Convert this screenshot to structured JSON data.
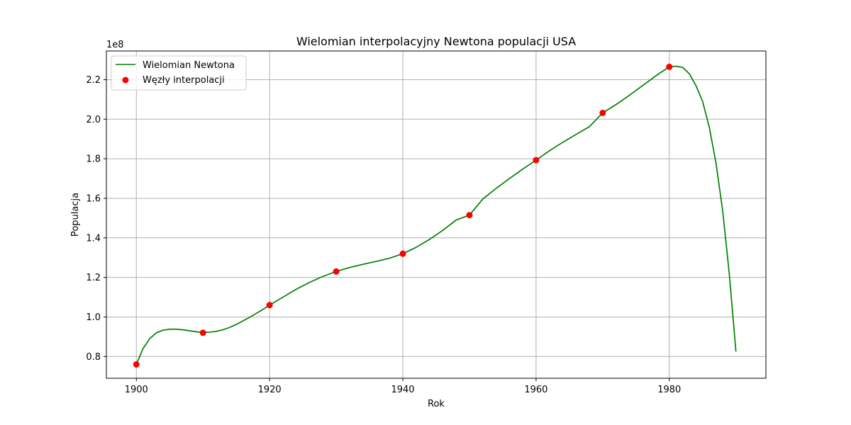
{
  "chart_data": {
    "type": "line",
    "title": "Wielomian interpolacyjny Newtona populacji USA",
    "xlabel": "Rok",
    "ylabel": "Populacja",
    "offset_label": "1e8",
    "xlim": [
      1895.5,
      1994.5
    ],
    "ylim": [
      0.69,
      2.345
    ],
    "x_ticks": [
      1900,
      1920,
      1940,
      1960,
      1980
    ],
    "y_ticks": [
      0.8,
      1.0,
      1.2,
      1.4,
      1.6,
      1.8,
      2.0,
      2.2
    ],
    "grid": true,
    "legend_position": "top-left",
    "series": [
      {
        "name": "Wielomian Newtona",
        "kind": "line",
        "color": "#008000",
        "x": [
          1900,
          1901,
          1902,
          1903,
          1904,
          1905,
          1906,
          1907,
          1908,
          1909,
          1910,
          1911,
          1912,
          1913,
          1914,
          1915,
          1916,
          1917,
          1918,
          1919,
          1920,
          1922,
          1924,
          1926,
          1928,
          1930,
          1932,
          1934,
          1936,
          1938,
          1940,
          1942,
          1944,
          1946,
          1948,
          1950,
          1952,
          1954,
          1956,
          1958,
          1960,
          1962,
          1964,
          1966,
          1968,
          1970,
          1972,
          1974,
          1976,
          1978,
          1980,
          1981,
          1982,
          1983,
          1984,
          1985,
          1986,
          1987,
          1988,
          1989,
          1990
        ],
        "y": [
          0.76,
          0.84,
          0.89,
          0.92,
          0.933,
          0.938,
          0.938,
          0.935,
          0.93,
          0.925,
          0.922,
          0.923,
          0.927,
          0.935,
          0.947,
          0.962,
          0.98,
          0.998,
          1.018,
          1.038,
          1.06,
          1.1,
          1.14,
          1.175,
          1.205,
          1.23,
          1.25,
          1.266,
          1.281,
          1.297,
          1.32,
          1.352,
          1.392,
          1.438,
          1.49,
          1.515,
          1.596,
          1.65,
          1.7,
          1.748,
          1.793,
          1.84,
          1.883,
          1.923,
          1.962,
          2.032,
          2.074,
          2.121,
          2.17,
          2.22,
          2.265,
          2.268,
          2.262,
          2.23,
          2.17,
          2.09,
          1.96,
          1.78,
          1.54,
          1.22,
          0.825
        ]
      },
      {
        "name": "Węzły interpolacji",
        "kind": "scatter",
        "color": "#ff0000",
        "x": [
          1900,
          1910,
          1920,
          1930,
          1940,
          1950,
          1960,
          1970,
          1980
        ],
        "y": [
          0.76,
          0.92,
          1.06,
          1.23,
          1.32,
          1.515,
          1.793,
          2.032,
          2.265
        ]
      }
    ]
  }
}
